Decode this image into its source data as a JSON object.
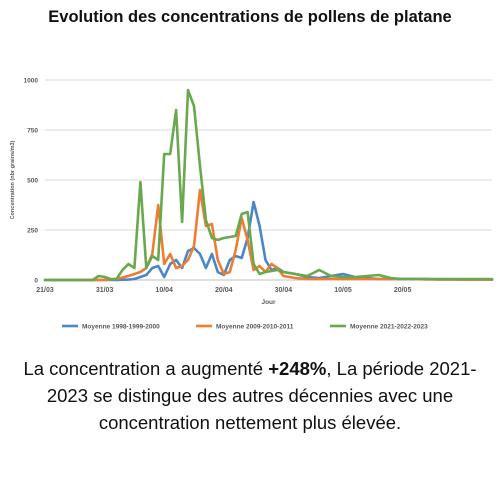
{
  "title": "Evolution des concentrations de pollens de platane",
  "caption": {
    "before": "La concentration a augmenté ",
    "highlight": "+248%",
    "after": ", La période 2021-2023 se distingue des autres décennies avec une concentration nettement plus élevée."
  },
  "chart_data": {
    "type": "line",
    "xlabel": "Jour",
    "ylabel": "Concentration (nbr grains/m3)",
    "ylim": [
      0,
      1000
    ],
    "yticks": [
      0,
      250,
      500,
      750,
      1000
    ],
    "grid": true,
    "legend_position": "bottom",
    "x_day_index_range": [
      0,
      75
    ],
    "xticks": [
      {
        "label": "21/03",
        "day": 0
      },
      {
        "label": "31/03",
        "day": 10
      },
      {
        "label": "10/04",
        "day": 20
      },
      {
        "label": "20/04",
        "day": 30
      },
      {
        "label": "30/04",
        "day": 40
      },
      {
        "label": "10/05",
        "day": 50
      },
      {
        "label": "20/05",
        "day": 60
      }
    ],
    "series": [
      {
        "name": "Moyenne 1998-1999-2000",
        "color": "#4a86c8",
        "points": [
          [
            0,
            0
          ],
          [
            2,
            0
          ],
          [
            4,
            0
          ],
          [
            6,
            0
          ],
          [
            8,
            0
          ],
          [
            10,
            0
          ],
          [
            12,
            0
          ],
          [
            14,
            2
          ],
          [
            15,
            5
          ],
          [
            16,
            15
          ],
          [
            17,
            25
          ],
          [
            18,
            60
          ],
          [
            19,
            70
          ],
          [
            20,
            15
          ],
          [
            21,
            80
          ],
          [
            22,
            100
          ],
          [
            23,
            60
          ],
          [
            24,
            145
          ],
          [
            25,
            160
          ],
          [
            26,
            130
          ],
          [
            27,
            60
          ],
          [
            28,
            130
          ],
          [
            29,
            40
          ],
          [
            30,
            25
          ],
          [
            31,
            100
          ],
          [
            32,
            120
          ],
          [
            33,
            110
          ],
          [
            34,
            210
          ],
          [
            35,
            390
          ],
          [
            36,
            270
          ],
          [
            37,
            100
          ],
          [
            38,
            50
          ],
          [
            39,
            60
          ],
          [
            40,
            40
          ],
          [
            42,
            30
          ],
          [
            44,
            15
          ],
          [
            46,
            10
          ],
          [
            48,
            20
          ],
          [
            50,
            30
          ],
          [
            52,
            15
          ],
          [
            54,
            10
          ],
          [
            56,
            5
          ],
          [
            58,
            5
          ],
          [
            60,
            5
          ],
          [
            62,
            5
          ],
          [
            64,
            5
          ],
          [
            66,
            3
          ],
          [
            68,
            3
          ],
          [
            70,
            2
          ],
          [
            72,
            2
          ],
          [
            75,
            2
          ]
        ]
      },
      {
        "name": "Moyenne 2009-2010-2011",
        "color": "#ed7d31",
        "points": [
          [
            0,
            0
          ],
          [
            2,
            0
          ],
          [
            4,
            0
          ],
          [
            6,
            0
          ],
          [
            8,
            0
          ],
          [
            10,
            0
          ],
          [
            12,
            5
          ],
          [
            14,
            20
          ],
          [
            15,
            30
          ],
          [
            16,
            40
          ],
          [
            17,
            60
          ],
          [
            18,
            130
          ],
          [
            19,
            375
          ],
          [
            20,
            80
          ],
          [
            21,
            130
          ],
          [
            22,
            60
          ],
          [
            23,
            70
          ],
          [
            24,
            100
          ],
          [
            25,
            170
          ],
          [
            26,
            450
          ],
          [
            27,
            270
          ],
          [
            28,
            280
          ],
          [
            29,
            100
          ],
          [
            30,
            30
          ],
          [
            31,
            40
          ],
          [
            32,
            150
          ],
          [
            33,
            310
          ],
          [
            34,
            200
          ],
          [
            35,
            50
          ],
          [
            36,
            70
          ],
          [
            37,
            40
          ],
          [
            38,
            80
          ],
          [
            39,
            60
          ],
          [
            40,
            20
          ],
          [
            42,
            10
          ],
          [
            44,
            5
          ],
          [
            46,
            5
          ],
          [
            48,
            5
          ],
          [
            50,
            5
          ],
          [
            52,
            5
          ],
          [
            54,
            5
          ],
          [
            56,
            5
          ],
          [
            58,
            5
          ],
          [
            60,
            5
          ],
          [
            62,
            5
          ],
          [
            64,
            3
          ],
          [
            66,
            3
          ],
          [
            68,
            3
          ],
          [
            70,
            2
          ],
          [
            72,
            2
          ],
          [
            75,
            2
          ]
        ]
      },
      {
        "name": "Moyenne 2021-2022-2023",
        "color": "#6aa84f",
        "points": [
          [
            0,
            0
          ],
          [
            2,
            0
          ],
          [
            4,
            0
          ],
          [
            6,
            0
          ],
          [
            8,
            0
          ],
          [
            9,
            20
          ],
          [
            10,
            15
          ],
          [
            11,
            5
          ],
          [
            12,
            5
          ],
          [
            13,
            50
          ],
          [
            14,
            80
          ],
          [
            15,
            60
          ],
          [
            16,
            490
          ],
          [
            17,
            60
          ],
          [
            18,
            120
          ],
          [
            19,
            100
          ],
          [
            20,
            630
          ],
          [
            21,
            630
          ],
          [
            22,
            850
          ],
          [
            23,
            290
          ],
          [
            24,
            950
          ],
          [
            25,
            870
          ],
          [
            26,
            570
          ],
          [
            27,
            300
          ],
          [
            28,
            210
          ],
          [
            29,
            200
          ],
          [
            30,
            210
          ],
          [
            31,
            215
          ],
          [
            32,
            220
          ],
          [
            33,
            330
          ],
          [
            34,
            340
          ],
          [
            35,
            80
          ],
          [
            36,
            30
          ],
          [
            37,
            40
          ],
          [
            38,
            45
          ],
          [
            39,
            50
          ],
          [
            40,
            40
          ],
          [
            42,
            30
          ],
          [
            44,
            20
          ],
          [
            46,
            50
          ],
          [
            48,
            20
          ],
          [
            50,
            15
          ],
          [
            52,
            15
          ],
          [
            54,
            20
          ],
          [
            56,
            25
          ],
          [
            58,
            10
          ],
          [
            60,
            5
          ],
          [
            62,
            5
          ],
          [
            64,
            5
          ],
          [
            66,
            5
          ],
          [
            68,
            5
          ],
          [
            70,
            5
          ],
          [
            72,
            5
          ],
          [
            75,
            5
          ]
        ]
      }
    ]
  }
}
